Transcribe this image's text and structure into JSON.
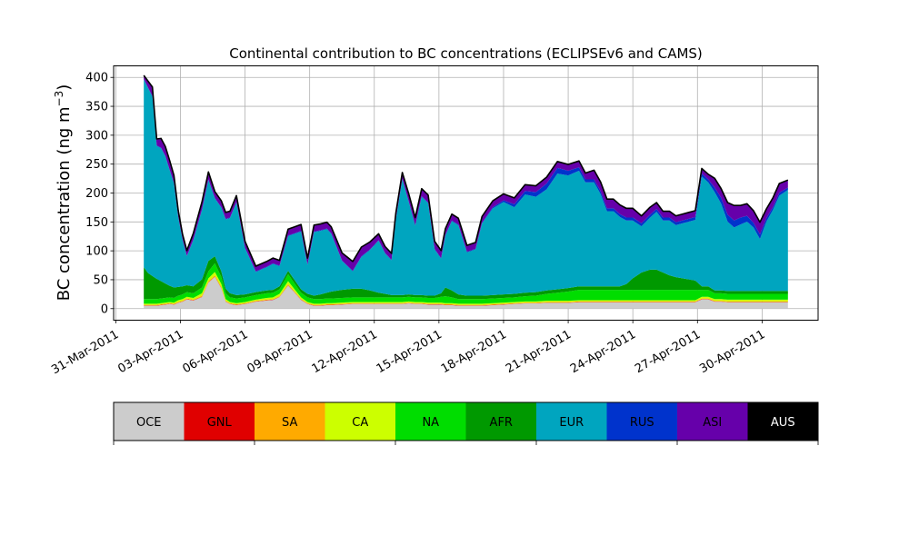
{
  "chart_data": {
    "type": "area",
    "stacked": true,
    "title": "Continental contribution to BC concentrations (ECLIPSEv6 and CAMS)",
    "ylabel": "BC concentration (ng m",
    "ylabel_exp": "−3",
    "ylabel_close": ")",
    "xlabel": "",
    "x_tick_labels": [
      "31-Mar-2011",
      "03-Apr-2011",
      "06-Apr-2011",
      "09-Apr-2011",
      "12-Apr-2011",
      "15-Apr-2011",
      "18-Apr-2011",
      "21-Apr-2011",
      "24-Apr-2011",
      "27-Apr-2011",
      "30-Apr-2011"
    ],
    "x_tick_days": [
      0,
      3,
      6,
      9,
      12,
      15,
      18,
      21,
      24,
      27,
      30
    ],
    "xlim_days": [
      -0.1,
      32.6
    ],
    "ylim": [
      -20,
      420
    ],
    "y_ticks": [
      0,
      50,
      100,
      150,
      200,
      250,
      300,
      350,
      400
    ],
    "grid": true,
    "x": [
      1.3,
      1.5,
      1.7,
      1.9,
      2.1,
      2.3,
      2.5,
      2.7,
      2.9,
      3.1,
      3.3,
      3.6,
      4.0,
      4.3,
      4.6,
      4.9,
      5.1,
      5.3,
      5.6,
      6.0,
      6.5,
      7.0,
      7.3,
      7.6,
      8.0,
      8.3,
      8.6,
      8.9,
      9.2,
      9.5,
      9.8,
      10.0,
      10.5,
      11.0,
      11.4,
      11.8,
      12.2,
      12.5,
      12.8,
      13.0,
      13.3,
      13.6,
      13.9,
      14.2,
      14.5,
      14.8,
      15.1,
      15.3,
      15.6,
      15.9,
      16.3,
      16.7,
      17.0,
      17.5,
      18.0,
      18.5,
      19.0,
      19.5,
      20.0,
      20.5,
      21.0,
      21.5,
      21.8,
      22.2,
      22.5,
      22.8,
      23.1,
      23.4,
      23.7,
      24.0,
      24.4,
      24.8,
      25.1,
      25.4,
      25.7,
      26.0,
      26.3,
      26.6,
      26.9,
      27.2,
      27.5,
      27.8,
      28.1,
      28.4,
      28.7,
      29.0,
      29.3,
      29.6,
      29.9,
      30.2,
      30.5,
      30.8,
      31.2
    ],
    "series": [
      {
        "name": "OCE",
        "color": "#cccccc",
        "values": [
          5,
          5,
          5,
          5,
          6,
          7,
          8,
          7,
          10,
          12,
          16,
          14,
          20,
          45,
          55,
          35,
          12,
          8,
          6,
          8,
          12,
          14,
          15,
          20,
          40,
          28,
          15,
          8,
          5,
          5,
          6,
          6,
          7,
          8,
          8,
          8,
          8,
          8,
          8,
          8,
          8,
          9,
          8,
          8,
          7,
          7,
          7,
          6,
          6,
          5,
          5,
          5,
          5,
          6,
          7,
          8,
          9,
          9,
          10,
          10,
          10,
          11,
          11,
          11,
          11,
          11,
          11,
          11,
          11,
          11,
          11,
          11,
          11,
          11,
          11,
          11,
          11,
          11,
          11,
          16,
          16,
          12,
          12,
          11,
          11,
          11,
          11,
          11,
          11,
          11,
          11,
          11,
          11
        ]
      },
      {
        "name": "GNL",
        "color": "#e00000",
        "values": [
          0.5,
          0.5,
          0.5,
          0.5,
          0.5,
          0.5,
          0.5,
          0.5,
          0.5,
          0.5,
          0.5,
          0.5,
          0.5,
          0.5,
          0.5,
          0.5,
          0.5,
          0.5,
          0.5,
          0.5,
          0.5,
          0.5,
          0.5,
          0.5,
          0.5,
          0.5,
          0.5,
          0.5,
          0.5,
          0.5,
          0.5,
          0.5,
          0.5,
          0.5,
          0.5,
          0.5,
          0.5,
          0.5,
          0.5,
          0.5,
          0.5,
          0.5,
          0.5,
          0.5,
          0.5,
          0.5,
          0.5,
          0.5,
          0.5,
          0.5,
          0.5,
          0.5,
          0.5,
          0.5,
          0.5,
          0.5,
          0.5,
          0.5,
          0.5,
          0.5,
          0.5,
          0.5,
          0.5,
          0.5,
          0.5,
          0.5,
          0.5,
          0.5,
          0.5,
          0.5,
          0.5,
          0.5,
          0.5,
          0.5,
          0.5,
          0.5,
          0.5,
          0.5,
          0.5,
          0.5,
          0.5,
          0.5,
          0.5,
          0.5,
          0.5,
          0.5,
          0.5,
          0.5,
          0.5,
          0.5,
          0.5,
          0.5,
          0.5
        ]
      },
      {
        "name": "SA",
        "color": "#ffaa00",
        "values": [
          1,
          1,
          1,
          1,
          1,
          1,
          1,
          1,
          1,
          1,
          1,
          1,
          2,
          2,
          2,
          2,
          1,
          1,
          1,
          1,
          1,
          1,
          1,
          1,
          2,
          1,
          1,
          1,
          1,
          1,
          1,
          1,
          1,
          1,
          1,
          1,
          1,
          1,
          1,
          1,
          1,
          1,
          1,
          1,
          1,
          1,
          1,
          1,
          1,
          1,
          1,
          1,
          1,
          1,
          1,
          1,
          1,
          1,
          1,
          1,
          1,
          1,
          1,
          1,
          1,
          1,
          1,
          1,
          1,
          1,
          1,
          1,
          1,
          1,
          1,
          1,
          1,
          1,
          1,
          1,
          1,
          1,
          1,
          1,
          1,
          1,
          1,
          1,
          1,
          1,
          1,
          1,
          1
        ]
      },
      {
        "name": "CA",
        "color": "#ccff00",
        "values": [
          2,
          2,
          2,
          2,
          2,
          2,
          2,
          2,
          3,
          3,
          3,
          3,
          4,
          5,
          6,
          5,
          3,
          2,
          2,
          2,
          2,
          3,
          3,
          4,
          5,
          4,
          3,
          2,
          2,
          2,
          2,
          2,
          2,
          2,
          2,
          2,
          2,
          2,
          2,
          2,
          2,
          2,
          2,
          2,
          2,
          2,
          2,
          2,
          2,
          2,
          2,
          2,
          2,
          2,
          2,
          2,
          2,
          2,
          2,
          2,
          2,
          2,
          2,
          2,
          2,
          2,
          2,
          2,
          2,
          2,
          2,
          2,
          2,
          2,
          2,
          2,
          2,
          2,
          2,
          3,
          3,
          3,
          3,
          3,
          3,
          3,
          3,
          3,
          3,
          3,
          3,
          3,
          3
        ]
      },
      {
        "name": "NA",
        "color": "#00dd00",
        "values": [
          8,
          8,
          8,
          8,
          8,
          8,
          8,
          8,
          8,
          8,
          8,
          8,
          10,
          12,
          15,
          12,
          10,
          8,
          8,
          8,
          8,
          8,
          8,
          8,
          12,
          10,
          8,
          8,
          8,
          8,
          8,
          8,
          8,
          8,
          8,
          8,
          8,
          8,
          8,
          8,
          8,
          8,
          8,
          8,
          8,
          8,
          10,
          12,
          10,
          8,
          8,
          8,
          8,
          8,
          8,
          8,
          9,
          10,
          12,
          14,
          16,
          18,
          18,
          18,
          18,
          18,
          18,
          18,
          18,
          18,
          18,
          18,
          18,
          18,
          18,
          18,
          18,
          18,
          18,
          12,
          12,
          10,
          10,
          10,
          10,
          10,
          10,
          10,
          10,
          10,
          10,
          10,
          10
        ]
      },
      {
        "name": "AFR",
        "color": "#009900",
        "values": [
          55,
          45,
          40,
          35,
          30,
          25,
          20,
          18,
          15,
          14,
          12,
          12,
          14,
          18,
          12,
          10,
          8,
          7,
          6,
          5,
          5,
          5,
          5,
          5,
          6,
          6,
          6,
          6,
          6,
          8,
          10,
          12,
          14,
          15,
          15,
          12,
          8,
          6,
          4,
          4,
          4,
          4,
          4,
          4,
          4,
          4,
          6,
          15,
          12,
          8,
          6,
          6,
          6,
          6,
          6,
          6,
          6,
          6,
          6,
          6,
          6,
          6,
          6,
          6,
          6,
          6,
          6,
          6,
          10,
          20,
          30,
          35,
          35,
          30,
          25,
          22,
          20,
          18,
          16,
          6,
          6,
          5,
          5,
          5,
          5,
          5,
          5,
          5,
          5,
          5,
          5,
          5,
          5
        ]
      },
      {
        "name": "EUR",
        "color": "#00a5bf",
        "values": [
          325,
          320,
          310,
          230,
          230,
          220,
          200,
          180,
          120,
          80,
          50,
          80,
          120,
          140,
          100,
          110,
          120,
          130,
          160,
          80,
          35,
          40,
          45,
          35,
          60,
          80,
          100,
          50,
          110,
          110,
          110,
          100,
          50,
          30,
          55,
          70,
          90,
          70,
          60,
          130,
          200,
          160,
          120,
          170,
          160,
          80,
          60,
          90,
          120,
          120,
          75,
          80,
          125,
          150,
          160,
          150,
          170,
          165,
          175,
          200,
          195,
          200,
          180,
          180,
          160,
          130,
          130,
          120,
          110,
          100,
          80,
          90,
          100,
          90,
          95,
          90,
          95,
          100,
          105,
          190,
          180,
          170,
          150,
          120,
          110,
          115,
          120,
          110,
          90,
          120,
          140,
          165,
          175
        ]
      },
      {
        "name": "RUS",
        "color": "#0033cc",
        "values": [
          1,
          1,
          1,
          1,
          1,
          1,
          1,
          1,
          1,
          1,
          1,
          1,
          1,
          1,
          1,
          1,
          1,
          1,
          1,
          1,
          1,
          1,
          1,
          1,
          1,
          1,
          1,
          1,
          1,
          1,
          1,
          1,
          1,
          1,
          1,
          1,
          1,
          1,
          1,
          1,
          1,
          1,
          1,
          1,
          1,
          1,
          1,
          1,
          1,
          1,
          1,
          1,
          1,
          2,
          3,
          5,
          6,
          8,
          10,
          10,
          8,
          6,
          5,
          5,
          5,
          5,
          5,
          5,
          5,
          5,
          5,
          5,
          5,
          5,
          5,
          5,
          5,
          5,
          5,
          5,
          5,
          8,
          10,
          12,
          12,
          12,
          10,
          8,
          8,
          6,
          5,
          5,
          4
        ]
      },
      {
        "name": "ASI",
        "color": "#6600aa",
        "values": [
          5,
          10,
          15,
          10,
          15,
          15,
          15,
          12,
          10,
          8,
          8,
          10,
          12,
          12,
          10,
          10,
          10,
          10,
          10,
          10,
          8,
          8,
          8,
          8,
          10,
          10,
          10,
          10,
          10,
          10,
          10,
          10,
          12,
          15,
          15,
          12,
          10,
          10,
          10,
          10,
          10,
          12,
          12,
          12,
          12,
          12,
          12,
          10,
          10,
          10,
          10,
          10,
          10,
          10,
          10,
          10,
          10,
          10,
          10,
          10,
          10,
          10,
          10,
          15,
          15,
          15,
          15,
          15,
          15,
          15,
          12,
          12,
          10,
          10,
          10,
          10,
          10,
          10,
          10,
          8,
          8,
          15,
          15,
          20,
          25,
          20,
          20,
          20,
          20,
          15,
          15,
          15,
          12
        ]
      },
      {
        "name": "AUS",
        "color": "#000000",
        "values": [
          1,
          1,
          1,
          1,
          1,
          1,
          1,
          1,
          1,
          1,
          1,
          1,
          1,
          1,
          1,
          1,
          1,
          1,
          1,
          1,
          1,
          1,
          1,
          1,
          1,
          1,
          1,
          1,
          1,
          1,
          1,
          1,
          1,
          1,
          1,
          1,
          1,
          1,
          1,
          1,
          1,
          1,
          1,
          1,
          1,
          1,
          1,
          1,
          1,
          1,
          1,
          1,
          1,
          1,
          1,
          1,
          1,
          1,
          1,
          1,
          1,
          1,
          1,
          1,
          1,
          1,
          1,
          1,
          1,
          1,
          1,
          1,
          1,
          1,
          1,
          1,
          1,
          1,
          1,
          1,
          1,
          1,
          1,
          1,
          1,
          1,
          1,
          1,
          1,
          1,
          1,
          1,
          1
        ]
      }
    ],
    "legend": {
      "placement": "bottom",
      "items": [
        {
          "label": "OCE",
          "color": "#cccccc",
          "text_color": "#000000"
        },
        {
          "label": "GNL",
          "color": "#e00000",
          "text_color": "#000000"
        },
        {
          "label": "SA",
          "color": "#ffaa00",
          "text_color": "#000000"
        },
        {
          "label": "CA",
          "color": "#ccff00",
          "text_color": "#000000"
        },
        {
          "label": "NA",
          "color": "#00dd00",
          "text_color": "#000000"
        },
        {
          "label": "AFR",
          "color": "#009900",
          "text_color": "#000000"
        },
        {
          "label": "EUR",
          "color": "#00a5bf",
          "text_color": "#000000"
        },
        {
          "label": "RUS",
          "color": "#0033cc",
          "text_color": "#000000"
        },
        {
          "label": "ASI",
          "color": "#6600aa",
          "text_color": "#000000"
        },
        {
          "label": "AUS",
          "color": "#000000",
          "text_color": "#ffffff"
        }
      ]
    }
  }
}
